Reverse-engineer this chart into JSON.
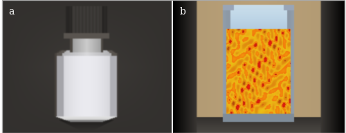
{
  "figure_width": 5.0,
  "figure_height": 1.93,
  "dpi": 100,
  "label_a": "a",
  "label_b": "b",
  "label_fontsize": 10,
  "label_color": "#ffffff",
  "label_color_b": "#ffffff",
  "outer_bg": "#ffffff",
  "panel_a_bg": [
    52,
    50,
    48
  ],
  "panel_b_bg": [
    178,
    155,
    120
  ]
}
